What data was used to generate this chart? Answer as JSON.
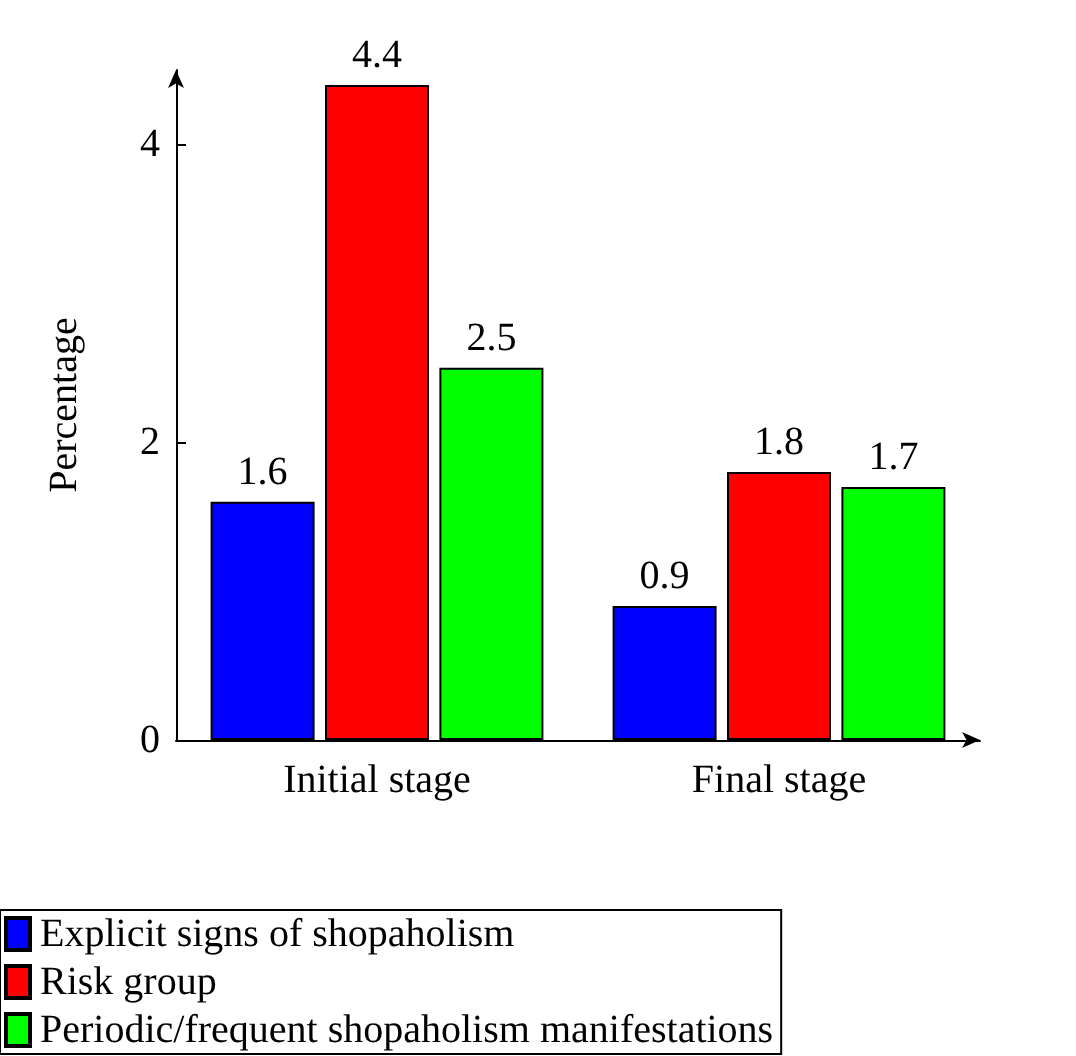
{
  "chart_data": {
    "type": "bar",
    "ylabel": "Percentage",
    "categories": [
      "Initial stage",
      "Final stage"
    ],
    "series": [
      {
        "name": "Explicit signs of shopaholism",
        "color": "#0000ff",
        "values": [
          1.6,
          0.9
        ]
      },
      {
        "name": "Risk group",
        "color": "#ff0000",
        "values": [
          4.4,
          1.8
        ]
      },
      {
        "name": "Periodic/frequent shopaholism manifestations",
        "color": "#00ff00",
        "values": [
          2.5,
          1.7
        ]
      }
    ],
    "ylim": [
      0,
      4.5
    ],
    "yticks": [
      0,
      2,
      4
    ],
    "data_labels": true,
    "grid": false,
    "legend": "bottom"
  }
}
